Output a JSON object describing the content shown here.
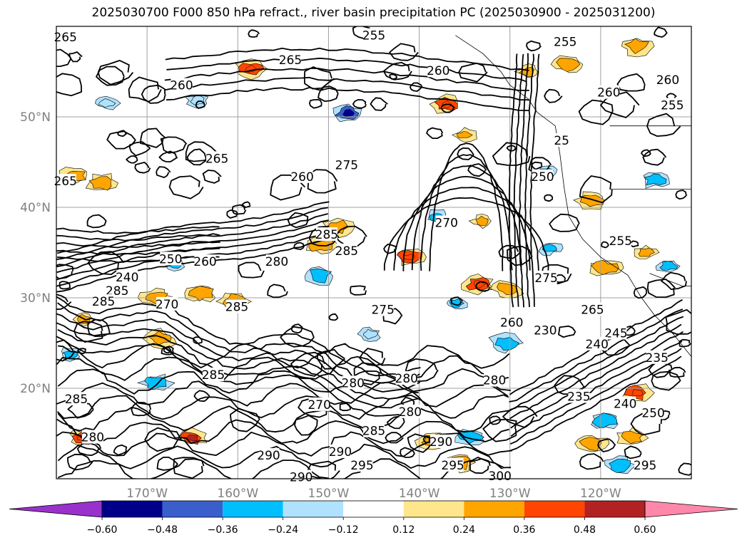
{
  "chart_data": {
    "type": "heatmap",
    "title": "2025030700 F000 850 hPa refract., river basin precipitation PC (2025030900 - 2025031200)",
    "map_extent": {
      "lon": [
        -180,
        -110
      ],
      "lat": [
        10,
        60
      ]
    },
    "lat_ticks": [
      {
        "value": 50,
        "label": "50°N"
      },
      {
        "value": 40,
        "label": "40°N"
      },
      {
        "value": 30,
        "label": "30°N"
      },
      {
        "value": 20,
        "label": "20°N"
      }
    ],
    "lon_ticks": [
      {
        "value": -170,
        "label": "170°W"
      },
      {
        "value": -160,
        "label": "160°W"
      },
      {
        "value": -150,
        "label": "150°W"
      },
      {
        "value": -140,
        "label": "140°W"
      },
      {
        "value": -130,
        "label": "130°W"
      },
      {
        "value": -120,
        "label": "120°W"
      }
    ],
    "grid": true,
    "colorbar": {
      "extend": "both",
      "boundaries": [
        -0.6,
        -0.48,
        -0.36,
        -0.24,
        -0.12,
        0.12,
        0.24,
        0.36,
        0.48,
        0.6
      ],
      "tick_labels": [
        "−0.60",
        "−0.48",
        "−0.36",
        "−0.24",
        "−0.12",
        "0.12",
        "0.24",
        "0.36",
        "0.48",
        "0.60"
      ],
      "colors": [
        "#9932cc",
        "#00008b",
        "#3a5fcd",
        "#00bfff",
        "#b0e2ff",
        "#ffffff",
        "#ffe68c",
        "#ffa500",
        "#ff4500",
        "#b22222",
        "#ff88aa"
      ]
    },
    "contour_labels": [
      {
        "lon": -179.0,
        "lat": 58.8,
        "text": "265"
      },
      {
        "lon": -145.0,
        "lat": 59.0,
        "text": "255"
      },
      {
        "lon": -154.2,
        "lat": 56.3,
        "text": "265"
      },
      {
        "lon": -137.9,
        "lat": 55.1,
        "text": "260"
      },
      {
        "lon": -166.2,
        "lat": 53.5,
        "text": "260"
      },
      {
        "lon": -162.3,
        "lat": 45.4,
        "text": "265"
      },
      {
        "lon": -179.0,
        "lat": 42.9,
        "text": "265"
      },
      {
        "lon": -152.9,
        "lat": 43.4,
        "text": "260"
      },
      {
        "lon": -148.0,
        "lat": 44.7,
        "text": "275"
      },
      {
        "lon": -137.0,
        "lat": 38.3,
        "text": "270"
      },
      {
        "lon": -150.2,
        "lat": 37.0,
        "text": "285"
      },
      {
        "lon": -148.0,
        "lat": 35.2,
        "text": "285"
      },
      {
        "lon": -163.6,
        "lat": 34.0,
        "text": "260"
      },
      {
        "lon": -167.4,
        "lat": 34.3,
        "text": "250"
      },
      {
        "lon": -172.2,
        "lat": 32.3,
        "text": "240"
      },
      {
        "lon": -173.3,
        "lat": 30.8,
        "text": "285"
      },
      {
        "lon": -174.8,
        "lat": 29.6,
        "text": "285"
      },
      {
        "lon": -155.7,
        "lat": 34.0,
        "text": "280"
      },
      {
        "lon": -167.8,
        "lat": 29.3,
        "text": "270"
      },
      {
        "lon": -160.1,
        "lat": 29.0,
        "text": "285"
      },
      {
        "lon": -144.0,
        "lat": 28.7,
        "text": "275"
      },
      {
        "lon": -126.0,
        "lat": 32.2,
        "text": "275"
      },
      {
        "lon": -123.9,
        "lat": 58.3,
        "text": "255"
      },
      {
        "lon": -119.1,
        "lat": 52.7,
        "text": "260"
      },
      {
        "lon": -112.6,
        "lat": 54.1,
        "text": "260"
      },
      {
        "lon": -112.1,
        "lat": 51.3,
        "text": "255"
      },
      {
        "lon": -126.4,
        "lat": 43.4,
        "text": "250"
      },
      {
        "lon": -124.3,
        "lat": 47.4,
        "text": "25"
      },
      {
        "lon": -117.8,
        "lat": 36.3,
        "text": "255"
      },
      {
        "lon": -120.9,
        "lat": 28.7,
        "text": "265"
      },
      {
        "lon": -129.8,
        "lat": 27.3,
        "text": "260"
      },
      {
        "lon": -118.3,
        "lat": 26.1,
        "text": "245"
      },
      {
        "lon": -120.4,
        "lat": 24.9,
        "text": "240"
      },
      {
        "lon": -113.8,
        "lat": 23.4,
        "text": "235"
      },
      {
        "lon": -126.1,
        "lat": 26.4,
        "text": "230"
      },
      {
        "lon": -122.4,
        "lat": 19.1,
        "text": "235"
      },
      {
        "lon": -117.3,
        "lat": 18.3,
        "text": "240"
      },
      {
        "lon": -114.2,
        "lat": 17.3,
        "text": "250"
      },
      {
        "lon": -141.4,
        "lat": 21.1,
        "text": "280"
      },
      {
        "lon": -131.7,
        "lat": 20.9,
        "text": "280"
      },
      {
        "lon": -147.3,
        "lat": 20.6,
        "text": "280"
      },
      {
        "lon": -151.0,
        "lat": 18.2,
        "text": "270"
      },
      {
        "lon": -141.0,
        "lat": 17.4,
        "text": "280"
      },
      {
        "lon": -145.0,
        "lat": 15.3,
        "text": "285"
      },
      {
        "lon": -162.7,
        "lat": 21.5,
        "text": "285"
      },
      {
        "lon": -177.8,
        "lat": 18.8,
        "text": "285"
      },
      {
        "lon": -176.0,
        "lat": 14.6,
        "text": "280"
      },
      {
        "lon": -137.6,
        "lat": 14.1,
        "text": "290"
      },
      {
        "lon": -148.7,
        "lat": 13.0,
        "text": "290"
      },
      {
        "lon": -156.6,
        "lat": 12.6,
        "text": "290"
      },
      {
        "lon": -146.3,
        "lat": 11.5,
        "text": "295"
      },
      {
        "lon": -136.3,
        "lat": 11.5,
        "text": "295"
      },
      {
        "lon": -131.1,
        "lat": 10.3,
        "text": "300"
      },
      {
        "lon": -153.0,
        "lat": 10.2,
        "text": "290"
      },
      {
        "lon": -115.1,
        "lat": 11.5,
        "text": "295"
      }
    ],
    "shaded_anomalies": [
      {
        "lon": -158.5,
        "lat": 55.3,
        "value": 0.45
      },
      {
        "lon": -137.0,
        "lat": 51.4,
        "value": 0.45
      },
      {
        "lon": -147.8,
        "lat": 50.4,
        "value": -0.55
      },
      {
        "lon": -164.5,
        "lat": 51.8,
        "value": -0.3
      },
      {
        "lon": -174.5,
        "lat": 51.5,
        "value": -0.3
      },
      {
        "lon": -178.0,
        "lat": 43.5,
        "value": 0.4
      },
      {
        "lon": -175.0,
        "lat": 42.7,
        "value": 0.4
      },
      {
        "lon": -141.0,
        "lat": 34.5,
        "value": 0.45
      },
      {
        "lon": -133.5,
        "lat": 31.5,
        "value": 0.45
      },
      {
        "lon": -130.2,
        "lat": 31.0,
        "value": 0.4
      },
      {
        "lon": -150.8,
        "lat": 35.8,
        "value": 0.4
      },
      {
        "lon": -151.0,
        "lat": 32.4,
        "value": -0.4
      },
      {
        "lon": -149.0,
        "lat": 37.8,
        "value": 0.4
      },
      {
        "lon": -135.0,
        "lat": 48.0,
        "value": 0.35
      },
      {
        "lon": -133.0,
        "lat": 38.5,
        "value": 0.35
      },
      {
        "lon": -128.0,
        "lat": 55.0,
        "value": 0.35
      },
      {
        "lon": -123.5,
        "lat": 55.8,
        "value": 0.4
      },
      {
        "lon": -116.0,
        "lat": 57.8,
        "value": 0.4
      },
      {
        "lon": -126.0,
        "lat": 43.8,
        "value": -0.35
      },
      {
        "lon": -114.0,
        "lat": 43.1,
        "value": -0.4
      },
      {
        "lon": -121.0,
        "lat": 40.8,
        "value": 0.4
      },
      {
        "lon": -115.0,
        "lat": 35.0,
        "value": 0.35
      },
      {
        "lon": -125.6,
        "lat": 35.5,
        "value": -0.35
      },
      {
        "lon": -119.5,
        "lat": 33.3,
        "value": 0.4
      },
      {
        "lon": -167.0,
        "lat": 33.8,
        "value": -0.35
      },
      {
        "lon": -169.0,
        "lat": 30.0,
        "value": 0.4
      },
      {
        "lon": -164.0,
        "lat": 30.5,
        "value": 0.4
      },
      {
        "lon": -160.5,
        "lat": 29.6,
        "value": 0.4
      },
      {
        "lon": -168.5,
        "lat": 25.5,
        "value": 0.4
      },
      {
        "lon": -177.0,
        "lat": 27.6,
        "value": 0.35
      },
      {
        "lon": -169.0,
        "lat": 20.6,
        "value": -0.4
      },
      {
        "lon": -178.5,
        "lat": 23.8,
        "value": -0.35
      },
      {
        "lon": -165.0,
        "lat": 14.5,
        "value": 0.5
      },
      {
        "lon": -177.0,
        "lat": 14.5,
        "value": 0.45
      },
      {
        "lon": -145.5,
        "lat": 26.0,
        "value": -0.3
      },
      {
        "lon": -136.0,
        "lat": 29.4,
        "value": -0.35
      },
      {
        "lon": -130.5,
        "lat": 25.0,
        "value": -0.4
      },
      {
        "lon": -138.5,
        "lat": 14.2,
        "value": 0.4
      },
      {
        "lon": -135.5,
        "lat": 11.8,
        "value": 0.4
      },
      {
        "lon": -134.3,
        "lat": 14.6,
        "value": -0.4
      },
      {
        "lon": -121.0,
        "lat": 13.9,
        "value": 0.4
      },
      {
        "lon": -116.0,
        "lat": 19.5,
        "value": 0.45
      },
      {
        "lon": -116.5,
        "lat": 14.5,
        "value": 0.4
      },
      {
        "lon": -119.5,
        "lat": 16.5,
        "value": -0.4
      },
      {
        "lon": -118.0,
        "lat": 11.5,
        "value": -0.4
      },
      {
        "lon": -112.5,
        "lat": 33.5,
        "value": -0.35
      },
      {
        "lon": -138.0,
        "lat": 39.0,
        "value": -0.35
      }
    ]
  }
}
